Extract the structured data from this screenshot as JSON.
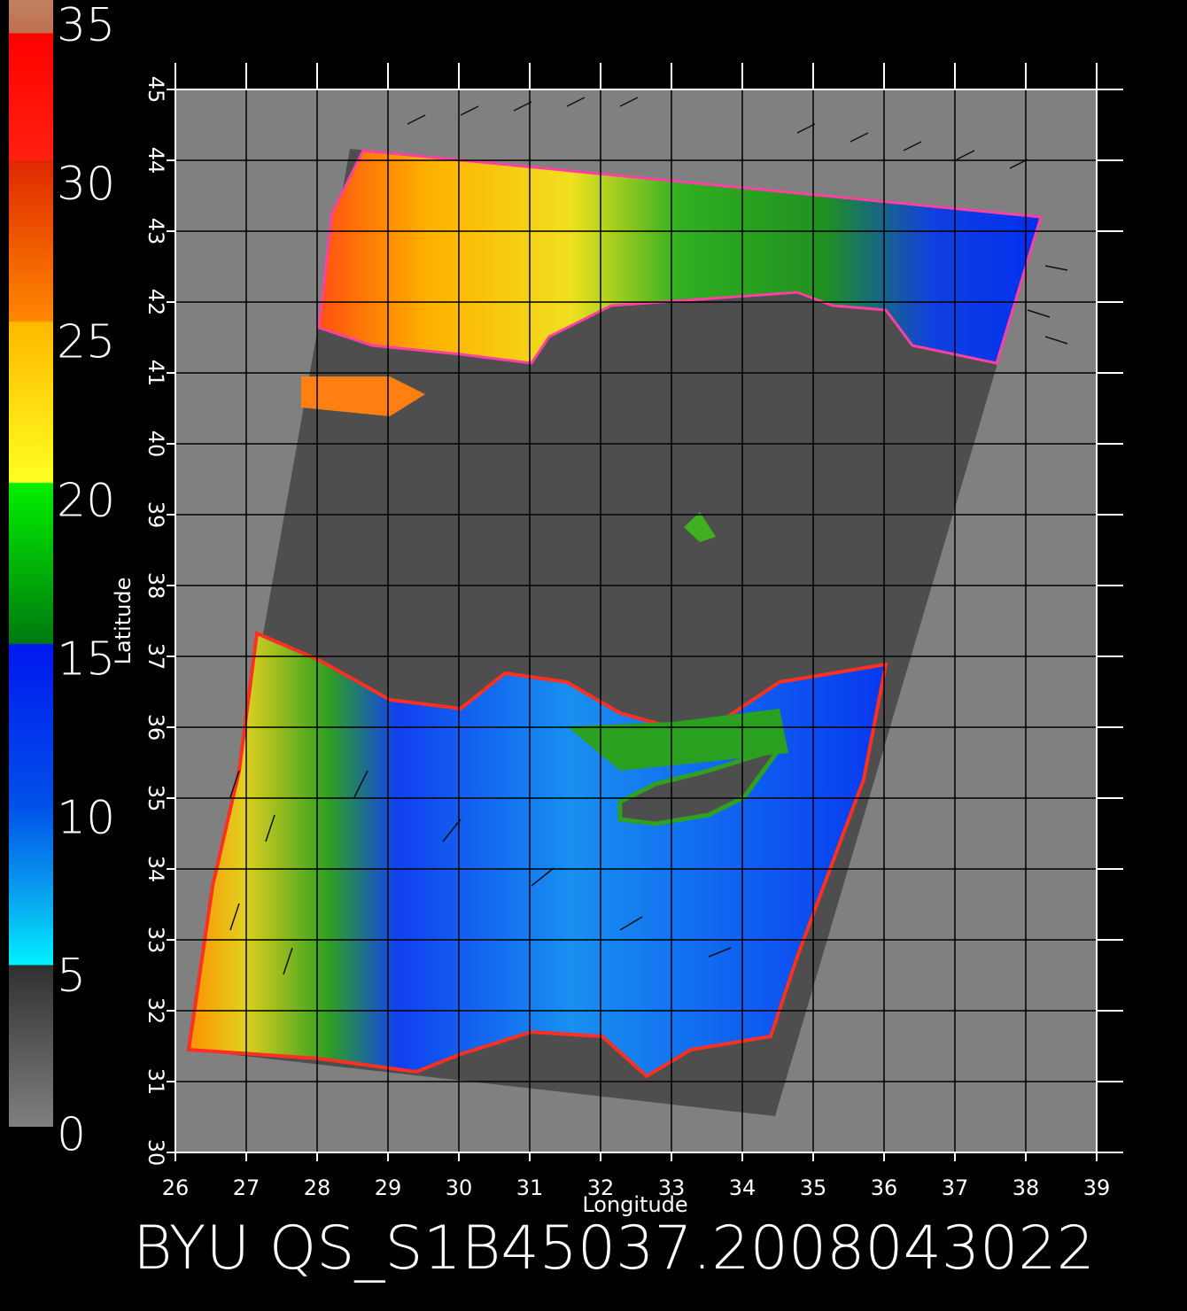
{
  "chart_data": {
    "type": "map",
    "title": "BYU QS_S1B45037.2008043022",
    "x_label": "Longitude",
    "y_label": "Latitude",
    "xlim": [
      26,
      39
    ],
    "xticks": [
      26,
      27,
      28,
      29,
      30,
      31,
      32,
      33,
      34,
      35,
      36,
      37,
      38,
      39
    ],
    "ylim": [
      30,
      45
    ],
    "yticks": [
      30,
      31,
      32,
      33,
      34,
      35,
      36,
      37,
      38,
      39,
      40,
      41,
      42,
      43,
      44,
      45
    ],
    "colorbar": {
      "lim": [
        0,
        35
      ],
      "ticks": [
        0,
        5,
        10,
        15,
        20,
        25,
        30,
        35
      ]
    },
    "grid": true
  }
}
